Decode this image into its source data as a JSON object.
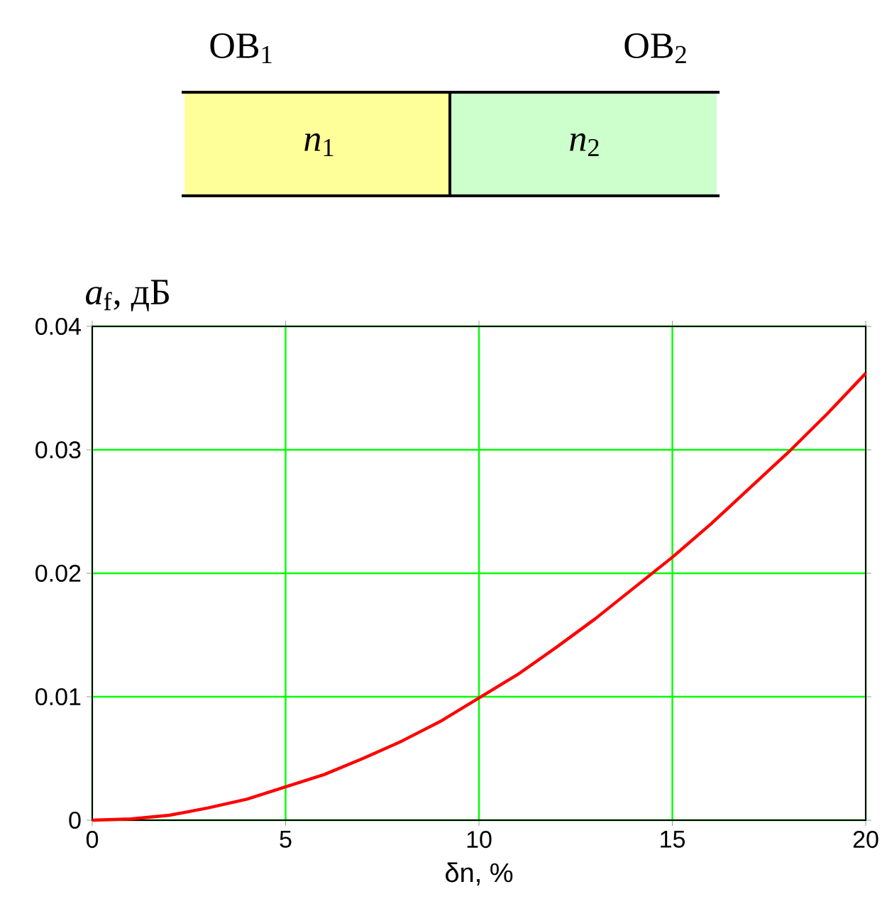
{
  "chart_data": {
    "type": "line",
    "xlabel": "δn, %",
    "ylabel": "*a*$_{f}$, дБ",
    "x": [
      0,
      1,
      2,
      3,
      4,
      5,
      6,
      7,
      8,
      9,
      10,
      11,
      12,
      13,
      14,
      15,
      16,
      17,
      18,
      19,
      20
    ],
    "series": [
      {
        "color": "#ff0000",
        "values": [
          0,
          0.0001,
          0.0004,
          0.001,
          0.0017,
          0.0027,
          0.0037,
          0.005,
          0.0064,
          0.008,
          0.0099,
          0.0118,
          0.014,
          0.0163,
          0.0188,
          0.0213,
          0.024,
          0.0269,
          0.0298,
          0.0329,
          0.0362
        ]
      }
    ],
    "xlim": [
      0,
      20
    ],
    "xticks": [
      0,
      5,
      10,
      15,
      20
    ],
    "ylim": [
      0,
      0.04
    ],
    "yticks": [
      0,
      0.01,
      0.02,
      0.03,
      0.04
    ],
    "grid": true,
    "marker": "none",
    "line_style": "solid",
    "annotations": [
      "OB$_{1}$",
      "OB$_{2}$",
      "*n*$_{1}$",
      "*n*$_{2}$"
    ]
  }
}
